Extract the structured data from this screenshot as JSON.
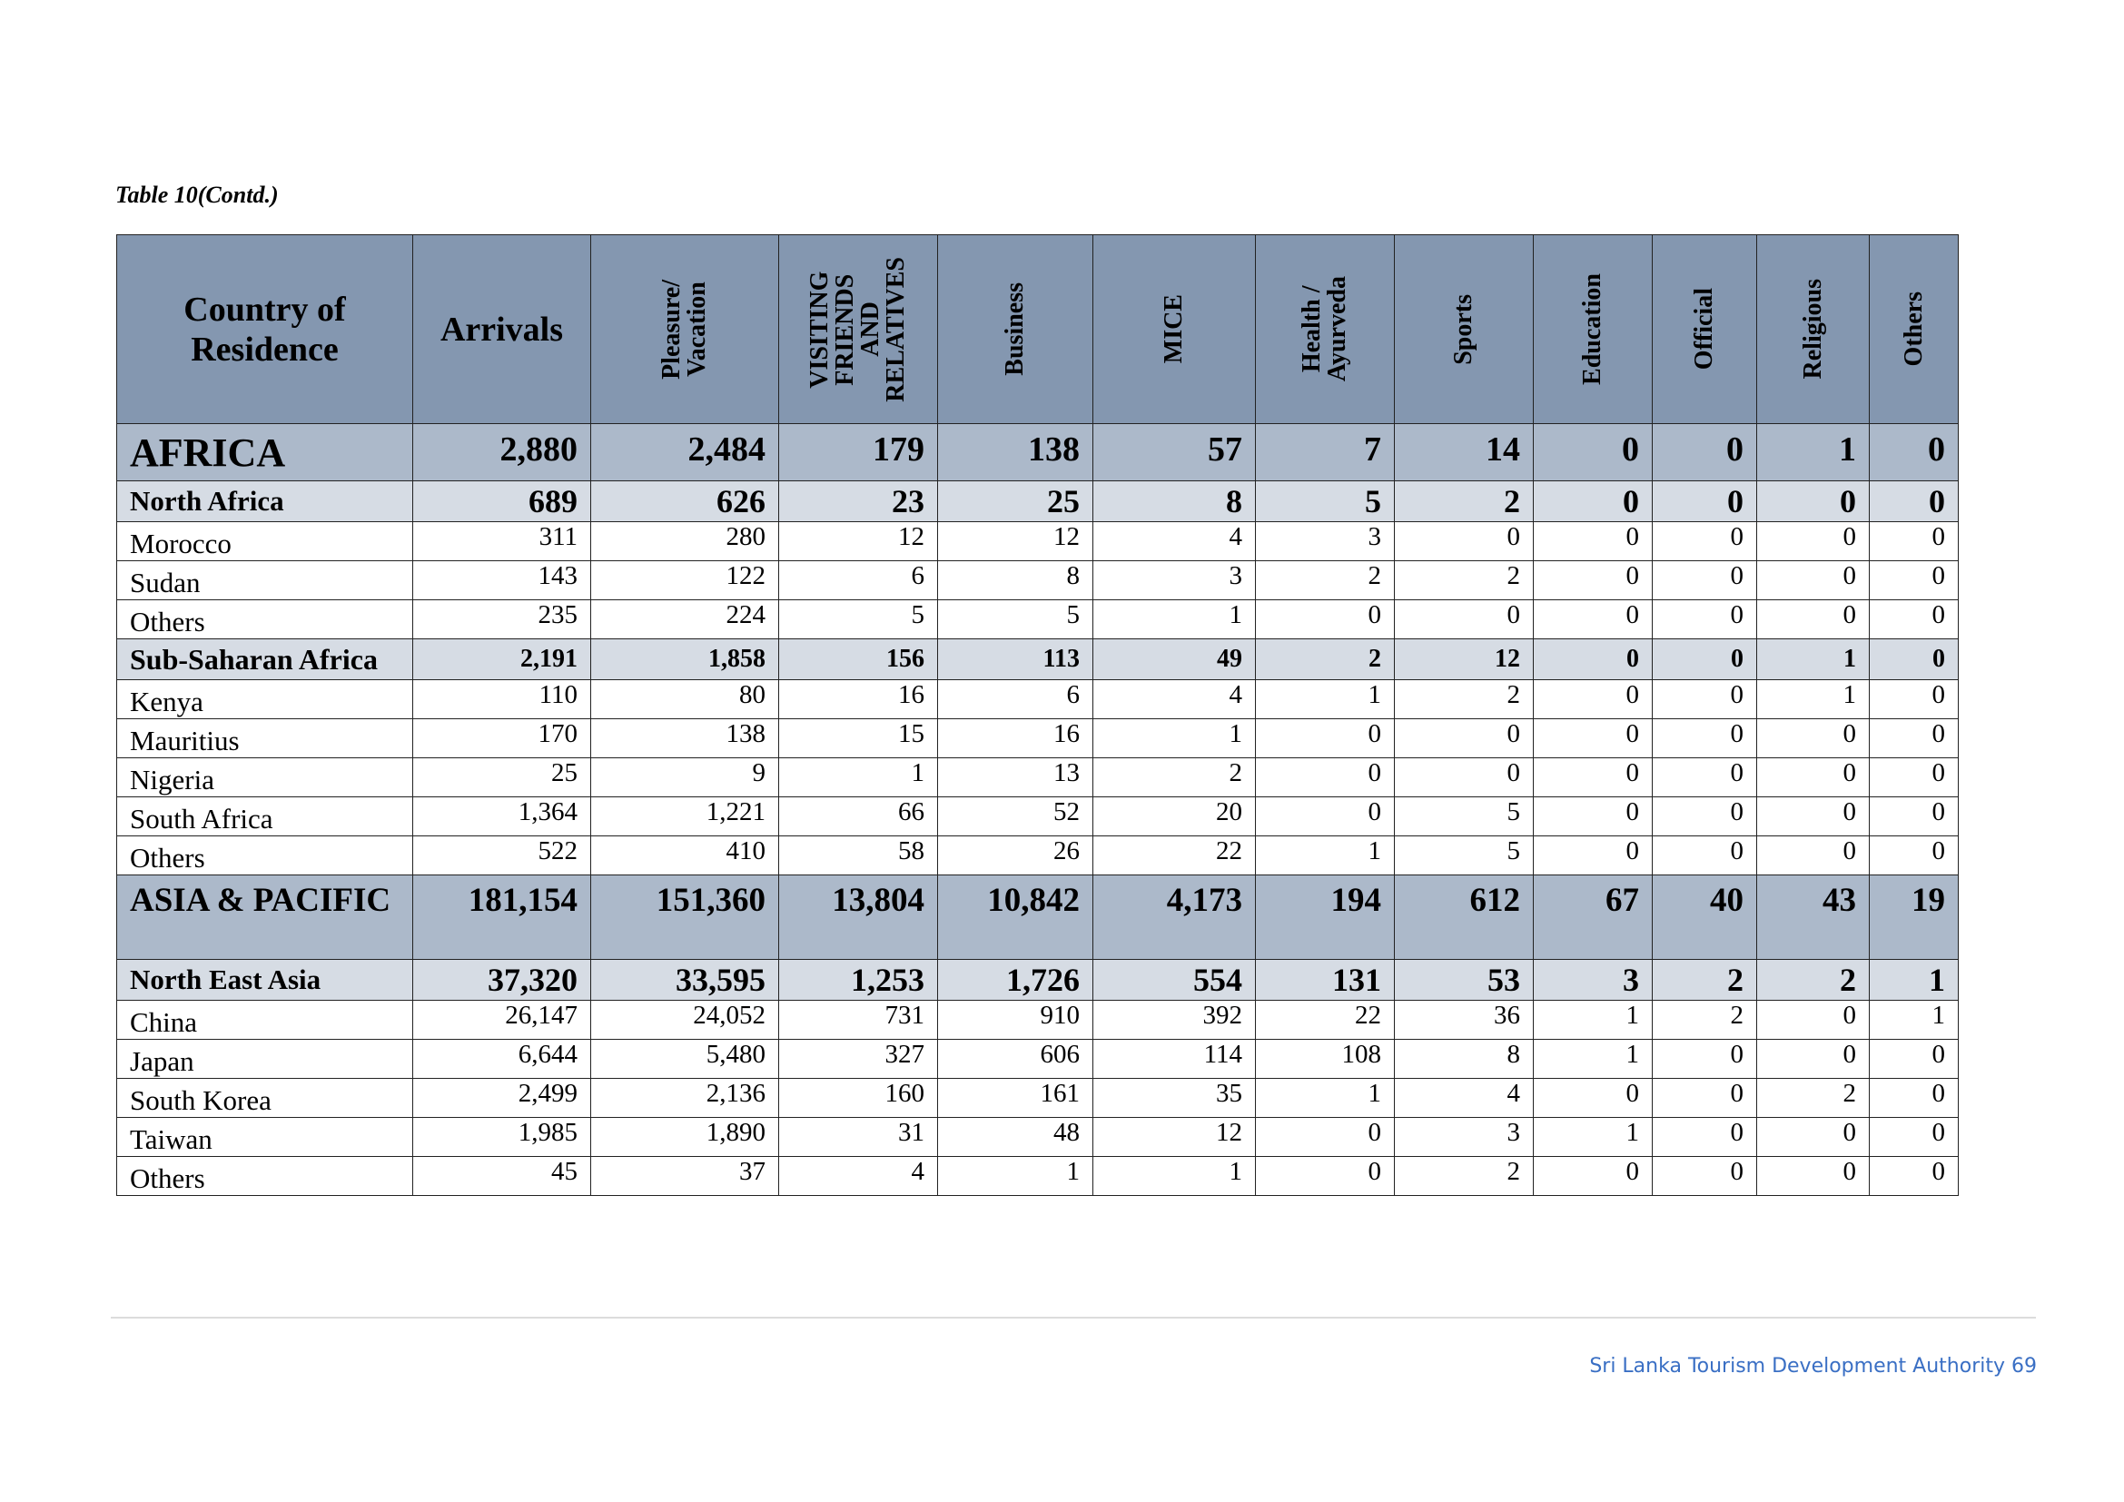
{
  "caption": "Table 10(Contd.)",
  "headers": {
    "country": "Country of Residence",
    "arrivals": "Arrivals",
    "purposes": [
      "Pleasure/\nVacation",
      "VISITING\nFRIENDS\nAND\nRELATIVES",
      "Business",
      "MICE",
      "Health /\nAyurveda",
      "Sports",
      "Education",
      "Official",
      "Religious",
      "Others"
    ]
  },
  "rows": [
    {
      "type": "region",
      "name": "AFRICA",
      "values": [
        "2,880",
        "2,484",
        "179",
        "138",
        "57",
        "7",
        "14",
        "0",
        "0",
        "1",
        "0"
      ]
    },
    {
      "type": "subregion",
      "name": "North Africa",
      "values": [
        "689",
        "626",
        "23",
        "25",
        "8",
        "5",
        "2",
        "0",
        "0",
        "0",
        "0"
      ]
    },
    {
      "type": "country",
      "name": "Morocco",
      "values": [
        "311",
        "280",
        "12",
        "12",
        "4",
        "3",
        "0",
        "0",
        "0",
        "0",
        "0"
      ]
    },
    {
      "type": "country",
      "name": "Sudan",
      "values": [
        "143",
        "122",
        "6",
        "8",
        "3",
        "2",
        "2",
        "0",
        "0",
        "0",
        "0"
      ]
    },
    {
      "type": "country",
      "name": "Others",
      "values": [
        "235",
        "224",
        "5",
        "5",
        "1",
        "0",
        "0",
        "0",
        "0",
        "0",
        "0"
      ]
    },
    {
      "type": "subregion-small",
      "name": "Sub-Saharan Africa",
      "values": [
        "2,191",
        "1,858",
        "156",
        "113",
        "49",
        "2",
        "12",
        "0",
        "0",
        "1",
        "0"
      ]
    },
    {
      "type": "country",
      "name": "Kenya",
      "values": [
        "110",
        "80",
        "16",
        "6",
        "4",
        "1",
        "2",
        "0",
        "0",
        "1",
        "0"
      ]
    },
    {
      "type": "country",
      "name": "Mauritius",
      "values": [
        "170",
        "138",
        "15",
        "16",
        "1",
        "0",
        "0",
        "0",
        "0",
        "0",
        "0"
      ]
    },
    {
      "type": "country",
      "name": "Nigeria",
      "values": [
        "25",
        "9",
        "1",
        "13",
        "2",
        "0",
        "0",
        "0",
        "0",
        "0",
        "0"
      ]
    },
    {
      "type": "country",
      "name": "South Africa",
      "values": [
        "1,364",
        "1,221",
        "66",
        "52",
        "20",
        "0",
        "5",
        "0",
        "0",
        "0",
        "0"
      ]
    },
    {
      "type": "country",
      "name": "Others",
      "values": [
        "522",
        "410",
        "58",
        "26",
        "22",
        "1",
        "5",
        "0",
        "0",
        "0",
        "0"
      ]
    },
    {
      "type": "region-tall",
      "name": "ASIA & PACIFIC",
      "values": [
        "181,154",
        "151,360",
        "13,804",
        "10,842",
        "4,173",
        "194",
        "612",
        "67",
        "40",
        "43",
        "19"
      ]
    },
    {
      "type": "subregion",
      "name": "North East Asia",
      "values": [
        "37,320",
        "33,595",
        "1,253",
        "1,726",
        "554",
        "131",
        "53",
        "3",
        "2",
        "2",
        "1"
      ]
    },
    {
      "type": "country",
      "name": "China",
      "values": [
        "26,147",
        "24,052",
        "731",
        "910",
        "392",
        "22",
        "36",
        "1",
        "2",
        "0",
        "1"
      ]
    },
    {
      "type": "country",
      "name": "Japan",
      "values": [
        "6,644",
        "5,480",
        "327",
        "606",
        "114",
        "108",
        "8",
        "1",
        "0",
        "0",
        "0"
      ]
    },
    {
      "type": "country",
      "name": "South Korea",
      "values": [
        "2,499",
        "2,136",
        "160",
        "161",
        "35",
        "1",
        "4",
        "0",
        "0",
        "2",
        "0"
      ]
    },
    {
      "type": "country",
      "name": "Taiwan",
      "values": [
        "1,985",
        "1,890",
        "31",
        "48",
        "12",
        "0",
        "3",
        "1",
        "0",
        "0",
        "0"
      ]
    },
    {
      "type": "country",
      "name": "Others",
      "values": [
        "45",
        "37",
        "4",
        "1",
        "1",
        "0",
        "2",
        "0",
        "0",
        "0",
        "0"
      ]
    }
  ],
  "footer": "Sri Lanka Tourism Development Authority 69"
}
